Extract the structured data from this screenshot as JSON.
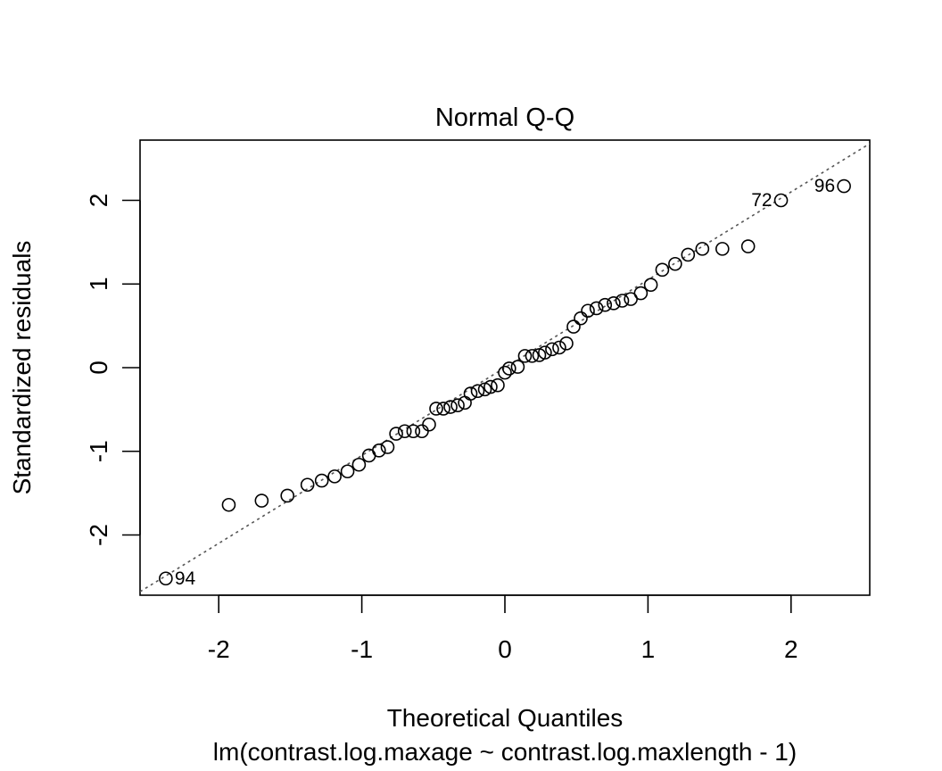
{
  "chart_data": {
    "type": "scatter",
    "title": "Normal Q-Q",
    "xlabel": "Theoretical Quantiles",
    "ylabel": "Standardized residuals",
    "subtitle": "lm(contrast.log.maxage ~ contrast.log.maxlength - 1)",
    "xlim": [
      -2.55,
      2.55
    ],
    "ylim": [
      -2.72,
      2.72
    ],
    "x_ticks": [
      -2,
      -1,
      0,
      1,
      2
    ],
    "y_ticks": [
      -2,
      -1,
      0,
      1,
      2
    ],
    "x_tick_labels": [
      "-2",
      "-1",
      "0",
      "1",
      "2"
    ],
    "y_tick_labels": [
      "-2",
      "-1",
      "0",
      "1",
      "2"
    ],
    "reference_line": {
      "style": "dotted",
      "color": "#555555",
      "intercept": 0,
      "slope": 1.05
    },
    "points": [
      {
        "x": -2.37,
        "y": -2.52,
        "label": "94"
      },
      {
        "x": -1.93,
        "y": -1.64
      },
      {
        "x": -1.7,
        "y": -1.59
      },
      {
        "x": -1.52,
        "y": -1.53
      },
      {
        "x": -1.38,
        "y": -1.4
      },
      {
        "x": -1.28,
        "y": -1.35
      },
      {
        "x": -1.19,
        "y": -1.3
      },
      {
        "x": -1.1,
        "y": -1.24
      },
      {
        "x": -1.02,
        "y": -1.16
      },
      {
        "x": -0.95,
        "y": -1.05
      },
      {
        "x": -0.88,
        "y": -0.99
      },
      {
        "x": -0.82,
        "y": -0.95
      },
      {
        "x": -0.76,
        "y": -0.79
      },
      {
        "x": -0.7,
        "y": -0.76
      },
      {
        "x": -0.64,
        "y": -0.76
      },
      {
        "x": -0.58,
        "y": -0.76
      },
      {
        "x": -0.53,
        "y": -0.68
      },
      {
        "x": -0.48,
        "y": -0.49
      },
      {
        "x": -0.43,
        "y": -0.49
      },
      {
        "x": -0.38,
        "y": -0.47
      },
      {
        "x": -0.33,
        "y": -0.45
      },
      {
        "x": -0.28,
        "y": -0.42
      },
      {
        "x": -0.24,
        "y": -0.31
      },
      {
        "x": -0.19,
        "y": -0.28
      },
      {
        "x": -0.14,
        "y": -0.26
      },
      {
        "x": -0.1,
        "y": -0.23
      },
      {
        "x": -0.05,
        "y": -0.21
      },
      {
        "x": 0.0,
        "y": -0.06
      },
      {
        "x": 0.03,
        "y": -0.01
      },
      {
        "x": 0.09,
        "y": 0.01
      },
      {
        "x": 0.14,
        "y": 0.14
      },
      {
        "x": 0.19,
        "y": 0.14
      },
      {
        "x": 0.24,
        "y": 0.15
      },
      {
        "x": 0.28,
        "y": 0.18
      },
      {
        "x": 0.33,
        "y": 0.22
      },
      {
        "x": 0.38,
        "y": 0.24
      },
      {
        "x": 0.43,
        "y": 0.29
      },
      {
        "x": 0.48,
        "y": 0.49
      },
      {
        "x": 0.53,
        "y": 0.59
      },
      {
        "x": 0.58,
        "y": 0.68
      },
      {
        "x": 0.64,
        "y": 0.71
      },
      {
        "x": 0.7,
        "y": 0.75
      },
      {
        "x": 0.76,
        "y": 0.77
      },
      {
        "x": 0.82,
        "y": 0.8
      },
      {
        "x": 0.88,
        "y": 0.82
      },
      {
        "x": 0.95,
        "y": 0.89
      },
      {
        "x": 1.02,
        "y": 0.99
      },
      {
        "x": 1.1,
        "y": 1.17
      },
      {
        "x": 1.19,
        "y": 1.24
      },
      {
        "x": 1.28,
        "y": 1.35
      },
      {
        "x": 1.38,
        "y": 1.42
      },
      {
        "x": 1.52,
        "y": 1.42
      },
      {
        "x": 1.7,
        "y": 1.45
      },
      {
        "x": 1.93,
        "y": 2.0,
        "label": "72"
      },
      {
        "x": 2.37,
        "y": 2.17,
        "label": "96"
      }
    ]
  }
}
